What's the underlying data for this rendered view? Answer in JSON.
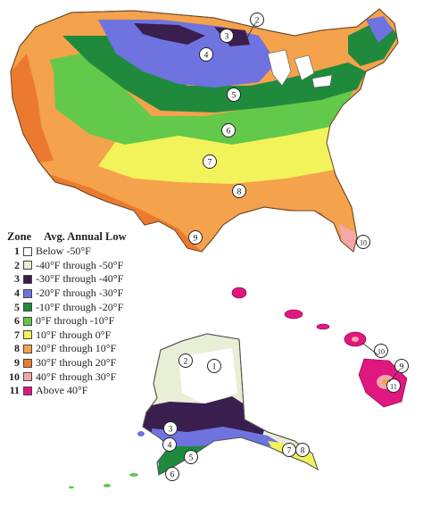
{
  "legend": {
    "header_zone": "Zone",
    "header_low": "Avg. Annual Low",
    "zones": [
      {
        "number": "1",
        "label": "Below -50°F",
        "color": "#ffffff"
      },
      {
        "number": "2",
        "label": "-40°F through -50°F",
        "color": "#e8efd6"
      },
      {
        "number": "3",
        "label": "-30°F through -40°F",
        "color": "#3a1e4e"
      },
      {
        "number": "4",
        "label": "-20°F through -30°F",
        "color": "#6f73e0"
      },
      {
        "number": "5",
        "label": "-10°F through -20°F",
        "color": "#1f8a3c"
      },
      {
        "number": "6",
        "label": "0°F through -10°F",
        "color": "#62c94a"
      },
      {
        "number": "7",
        "label": "10°F through 0°F",
        "color": "#f2f25a"
      },
      {
        "number": "8",
        "label": "20°F through 10°F",
        "color": "#f4a24c"
      },
      {
        "number": "9",
        "label": "30°F through 20°F",
        "color": "#ec7a2e"
      },
      {
        "number": "10",
        "label": "40°F through 30°F",
        "color": "#f4a7a7"
      },
      {
        "number": "11",
        "label": "Above 40°F",
        "color": "#e0177f"
      }
    ]
  },
  "map_markers": {
    "conus": [
      "2",
      "3",
      "4",
      "5",
      "6",
      "7",
      "8",
      "9",
      "10"
    ],
    "alaska": [
      "1",
      "2",
      "3",
      "4",
      "5",
      "6",
      "7",
      "8"
    ],
    "hawaii": [
      "9",
      "10",
      "11"
    ]
  }
}
